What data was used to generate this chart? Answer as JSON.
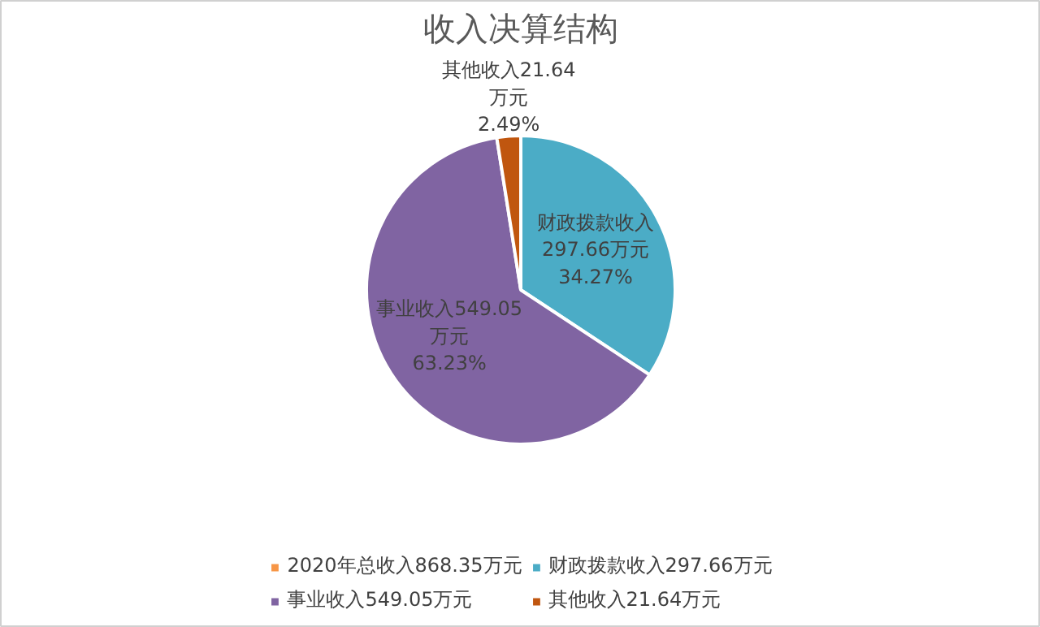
{
  "chart_data": {
    "type": "pie",
    "title": "收入决算结构",
    "categories": [
      "2020年总收入868.35万元",
      "财政拨款收入297.66万元",
      "事业收入549.05万元",
      "其他收入21.64万元"
    ],
    "values": [
      null,
      297.66,
      549.05,
      21.64
    ],
    "colors": [
      "#f79646",
      "#4bacc6",
      "#8064a2",
      "#c0560f"
    ],
    "value_labels": [
      null,
      "财政拨款收入\n297.66万元\n34.27%",
      "事业收入549.05\n万元\n63.23%",
      "其他收入21.64\n万元\n2.49%"
    ],
    "legend": "bottom"
  }
}
